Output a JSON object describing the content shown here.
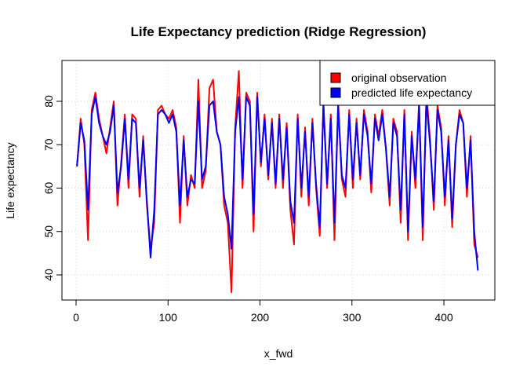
{
  "chart_data": {
    "type": "line",
    "title": "Life Expectancy prediction (Ridge Regression)",
    "x_label": "x_fwd",
    "y_label": "Life expectancy",
    "x": [
      1,
      5,
      9,
      13,
      17,
      21,
      25,
      29,
      33,
      37,
      41,
      45,
      49,
      53,
      57,
      61,
      65,
      69,
      73,
      77,
      81,
      85,
      89,
      93,
      97,
      101,
      105,
      109,
      113,
      117,
      121,
      125,
      129,
      133,
      137,
      141,
      145,
      149,
      153,
      157,
      161,
      165,
      169,
      173,
      177,
      181,
      185,
      189,
      193,
      197,
      201,
      205,
      209,
      213,
      217,
      221,
      225,
      229,
      233,
      237,
      241,
      245,
      249,
      253,
      257,
      261,
      265,
      269,
      273,
      277,
      281,
      285,
      289,
      293,
      297,
      301,
      305,
      309,
      313,
      317,
      321,
      325,
      329,
      333,
      337,
      341,
      345,
      349,
      353,
      357,
      361,
      365,
      369,
      373,
      377,
      381,
      385,
      389,
      393,
      397,
      401,
      405,
      409,
      413,
      417,
      421,
      425,
      429,
      433,
      437
    ],
    "series": [
      {
        "name": "original observation",
        "color": "#ff0000",
        "values": [
          65,
          76,
          70,
          48,
          78,
          82,
          76,
          72,
          68,
          74,
          80,
          56,
          66,
          77,
          60,
          77,
          76,
          58,
          72,
          56,
          46,
          52,
          78,
          79,
          77,
          76,
          78,
          74,
          52,
          72,
          56,
          63,
          60,
          85,
          60,
          64,
          83,
          85,
          73,
          70,
          56,
          52,
          36,
          74,
          87,
          60,
          82,
          80,
          50,
          82,
          65,
          77,
          62,
          76,
          60,
          77,
          60,
          75,
          55,
          47,
          77,
          58,
          74,
          56,
          76,
          60,
          49,
          80,
          60,
          77,
          48,
          80,
          62,
          58,
          78,
          60,
          76,
          62,
          78,
          73,
          59,
          77,
          72,
          78,
          69,
          56,
          76,
          73,
          52,
          78,
          48,
          73,
          60,
          80,
          48,
          82,
          71,
          55,
          79,
          74,
          56,
          72,
          51,
          70,
          78,
          75,
          58,
          72,
          47,
          44
        ]
      },
      {
        "name": "predicted life expectancy",
        "color": "#0000ff",
        "values": [
          65,
          75,
          71,
          55,
          77,
          81,
          75,
          72,
          70,
          73,
          79,
          59,
          65,
          76,
          62,
          76,
          75,
          60,
          71,
          57,
          44,
          55,
          77,
          78,
          77,
          75,
          77,
          73,
          56,
          71,
          58,
          62,
          61,
          80,
          62,
          65,
          79,
          80,
          73,
          70,
          58,
          54,
          46,
          73,
          81,
          62,
          81,
          79,
          54,
          81,
          66,
          76,
          63,
          75,
          61,
          76,
          62,
          74,
          57,
          52,
          76,
          60,
          73,
          58,
          75,
          61,
          51,
          79,
          61,
          76,
          52,
          79,
          63,
          60,
          77,
          62,
          75,
          63,
          77,
          72,
          61,
          76,
          71,
          77,
          69,
          58,
          75,
          72,
          55,
          77,
          50,
          72,
          62,
          79,
          51,
          80,
          70,
          57,
          78,
          73,
          58,
          71,
          53,
          70,
          77,
          75,
          60,
          71,
          50,
          41
        ]
      }
    ],
    "xlim": [
      -15.35,
      455.4
    ],
    "ylim": [
      34.21,
      89.41
    ],
    "xticks": [
      0,
      100,
      200,
      300,
      400
    ],
    "yticks": [
      40,
      50,
      60,
      70,
      80
    ],
    "grid": true,
    "legend": "top-right"
  }
}
